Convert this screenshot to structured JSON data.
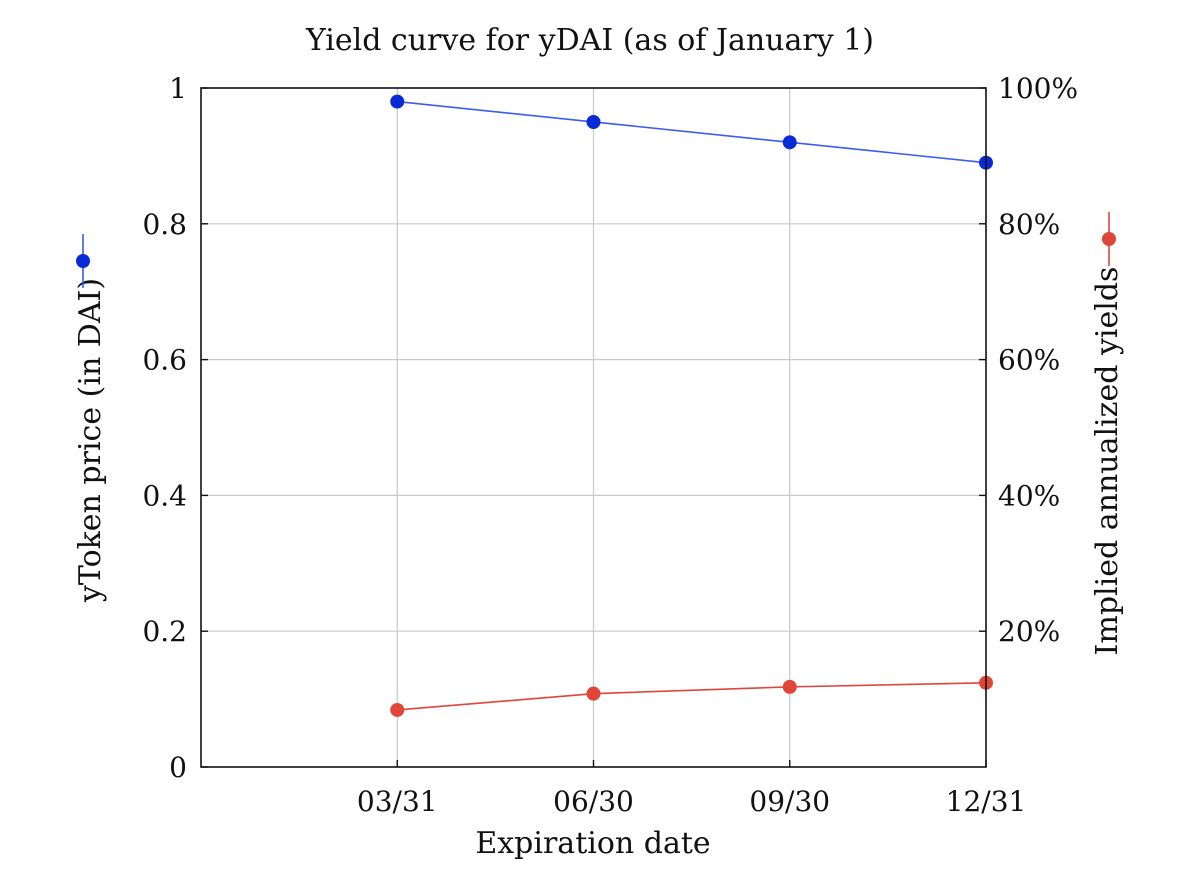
{
  "chart_data": {
    "type": "line",
    "title": "Yield curve for yDAI (as of January 1)",
    "xlabel": "Expiration date",
    "ylabel_left": "yToken price (in DAI)",
    "ylabel_right": "Implied annualized yields",
    "categories": [
      "03/31",
      "06/30",
      "09/30",
      "12/31"
    ],
    "x_ticks": [
      "03/31",
      "06/30",
      "09/30",
      "12/31"
    ],
    "x_positions": [
      1,
      2,
      3,
      4
    ],
    "xlim": [
      0,
      4
    ],
    "y_left": {
      "lim": [
        0,
        1
      ],
      "ticks": [
        0,
        0.2,
        0.4,
        0.6,
        0.8,
        1
      ],
      "tick_labels": [
        "0",
        "0.2",
        "0.4",
        "0.6",
        "0.8",
        "1"
      ]
    },
    "y_right": {
      "lim": [
        0,
        1
      ],
      "ticks": [
        0.2,
        0.4,
        0.6,
        0.8,
        1.0
      ],
      "tick_labels": [
        "20%",
        "40%",
        "60%",
        "80%",
        "100%"
      ]
    },
    "grid": true,
    "series": [
      {
        "axis": "left",
        "color": "#0a2ad6",
        "line_color": "#3a5cf0",
        "values": [
          0.98,
          0.95,
          0.92,
          0.89
        ]
      },
      {
        "axis": "right",
        "color": "#e0453a",
        "line_color": "#e0453a",
        "values": [
          0.084,
          0.108,
          0.118,
          0.124
        ]
      }
    ]
  }
}
